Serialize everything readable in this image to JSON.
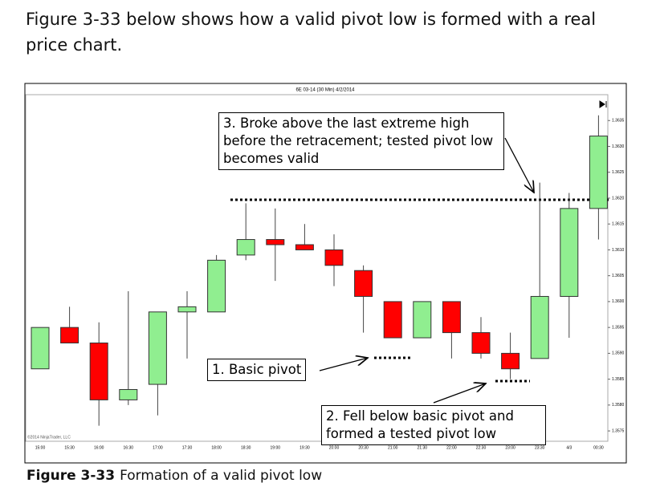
{
  "header": {
    "text": "Figure 3-33 below shows how a valid pivot low is formed with a real price chart."
  },
  "chart_data": {
    "type": "candlestick",
    "title": "6E 03-14 (30 Min) 4/2/2014",
    "copyright": "©2014 NinjaTrader, LLC",
    "categories": [
      "15:00",
      "15:30",
      "16:00",
      "16:30",
      "17:00",
      "17:30",
      "18:00",
      "18:30",
      "19:00",
      "19:30",
      "20:00",
      "20:30",
      "21:00",
      "21:30",
      "22:00",
      "22:30",
      "23:00",
      "23:30",
      "4/3",
      "00:30"
    ],
    "open": [
      1.3587,
      1.3595,
      1.3592,
      1.3581,
      1.3584,
      1.3598,
      1.3598,
      1.3609,
      1.3612,
      1.3611,
      1.361,
      1.3606,
      1.36,
      1.3593,
      1.36,
      1.3594,
      1.359,
      1.3589,
      1.3601,
      1.3618
    ],
    "high": [
      1.3595,
      1.3599,
      1.3596,
      1.3602,
      1.3598,
      1.3602,
      1.3609,
      1.3619,
      1.3618,
      1.3615,
      1.3613,
      1.3607,
      1.36,
      1.36,
      1.36,
      1.3597,
      1.3594,
      1.3623,
      1.3621,
      1.3636
    ],
    "low": [
      1.3587,
      1.3592,
      1.3576,
      1.358,
      1.3578,
      1.3589,
      1.3598,
      1.3608,
      1.3604,
      1.361,
      1.3603,
      1.3594,
      1.3593,
      1.3593,
      1.3589,
      1.3589,
      1.3585,
      1.3589,
      1.3593,
      1.3612
    ],
    "close": [
      1.3595,
      1.3592,
      1.3581,
      1.3583,
      1.3598,
      1.3599,
      1.3608,
      1.3612,
      1.3611,
      1.361,
      1.3607,
      1.3601,
      1.3593,
      1.36,
      1.3594,
      1.359,
      1.3587,
      1.3601,
      1.3618,
      1.3632
    ],
    "up_color": "#90ee90",
    "down_color": "#ff0000",
    "ylim": [
      1.3573,
      1.364
    ],
    "yticks": [
      1.3575,
      {
        "value": 1.358,
        "label": "1.3580"
      },
      1.3585,
      {
        "value": 1.359,
        "label": "1.3590"
      },
      1.3595,
      {
        "value": 1.36,
        "label": "1.3600"
      },
      1.3605,
      {
        "value": 1.361,
        "label": "1.3610"
      },
      1.3615,
      {
        "value": 1.362,
        "label": "1.3620"
      },
      1.3625,
      {
        "value": 1.363,
        "label": "1.3630"
      },
      1.3635
    ],
    "annotations": [
      "1. Basic pivot",
      "2. Fell below basic pivot and formed a tested pivot low",
      "3. Broke above the last extreme high before the retracement; tested pivot low becomes valid"
    ]
  },
  "caption": {
    "label": "Figure 3-33",
    "text": "Formation of a valid pivot low"
  }
}
